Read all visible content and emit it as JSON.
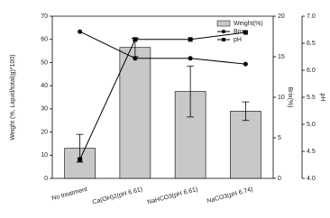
{
  "chart_data": {
    "type": "bar",
    "categories": [
      "No treatment",
      "Ca(OH)2(pH 6.61)",
      "NaHCO3(pH 6.61)",
      "NaCO3(pH 6.74)"
    ],
    "series": [
      {
        "name": "Weight(%)",
        "type": "bar",
        "color": "#c8c8c8",
        "values": [
          13,
          56.5,
          37.5,
          29
        ],
        "errors": [
          6,
          4,
          11,
          4
        ]
      },
      {
        "name": "Brix",
        "type": "line",
        "axis": "y2",
        "marker": "circle",
        "color": "#000000",
        "values": [
          18.1,
          14.8,
          14.8,
          14.1
        ]
      },
      {
        "name": "pH",
        "type": "line",
        "axis": "y3",
        "marker": "square",
        "color": "#000000",
        "values": [
          4.35,
          6.57,
          6.57,
          6.7
        ]
      }
    ],
    "ylabel": "Weight (%, Liquid/total(g)*100)",
    "y2label": "Brix(%)",
    "y3label": "pH",
    "ylim": [
      0,
      70
    ],
    "yticks": [
      0,
      10,
      20,
      30,
      40,
      50,
      60,
      70
    ],
    "y2lim": [
      0,
      20
    ],
    "y2ticks": [
      0,
      5,
      10,
      15,
      20
    ],
    "y3lim": [
      4,
      7
    ],
    "y3ticks": [
      {
        "value": 4,
        "label": "4.0"
      },
      4.5,
      {
        "value": 5,
        "label": "5.0"
      },
      5.5,
      {
        "value": 6,
        "label": "6.0"
      },
      6.5,
      {
        "value": 7,
        "label": "7.0"
      }
    ],
    "legend": "upper right"
  }
}
